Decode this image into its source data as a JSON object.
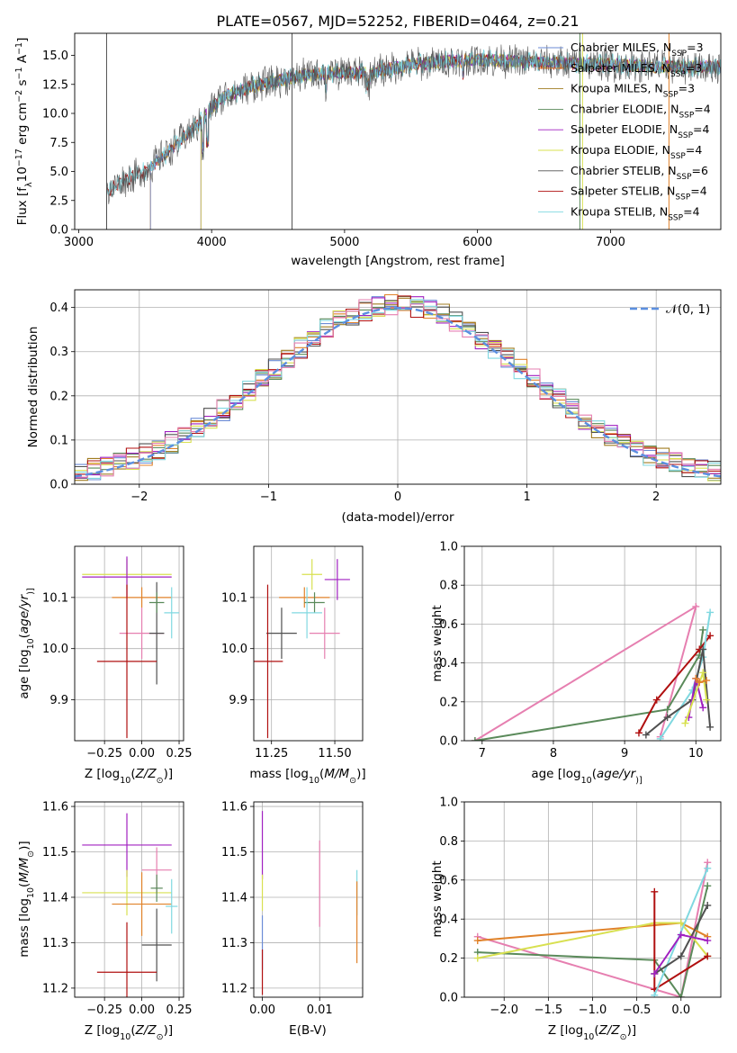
{
  "title": "PLATE=0567, MJD=52252, FIBERID=0464, z=0.21",
  "colors": {
    "Chabrier MILES": "#6b8bd6",
    "Salpeter MILES": "#e0822a",
    "Kroupa MILES": "#a07c20",
    "Chabrier ELODIE": "#5a8a5a",
    "Salpeter ELODIE": "#a020c0",
    "Kroupa ELODIE": "#d8e050",
    "Chabrier STELIB": "#505050",
    "Salpeter STELIB": "#b01010",
    "Kroupa STELIB": "#80d8e0",
    "Pink": "#e67fb0",
    "Normal": "#5b8fe0"
  },
  "chart_data": [
    {
      "type": "line",
      "panel": "spectrum",
      "title": "PLATE=0567, MJD=52252, FIBERID=0464, z=0.21",
      "xlabel": "wavelength [Angstrom, rest frame]",
      "ylabel_parts": [
        "Flux [f",
        "λ",
        "10",
        "−17",
        " erg cm",
        "−2",
        " s",
        "−1",
        " A",
        "−1",
        "]"
      ],
      "xlim": [
        2970,
        7830
      ],
      "ylim": [
        0,
        16.9
      ],
      "xticks": [
        3000,
        4000,
        5000,
        6000,
        7000
      ],
      "yticks": [
        0.0,
        2.5,
        5.0,
        7.5,
        10.0,
        12.5,
        15.0
      ],
      "legend_position": "right",
      "continuum": {
        "x": [
          3210,
          3300,
          3500,
          3650,
          3750,
          3900,
          4000,
          4100,
          4300,
          4500,
          4700,
          4900,
          5200,
          5500,
          5800,
          6000,
          6500,
          7000,
          7400,
          7830
        ],
        "y": [
          3.2,
          4.0,
          5.0,
          6.5,
          7.5,
          9.0,
          10.5,
          11.5,
          12.3,
          12.8,
          13.3,
          13.5,
          13.5,
          14.2,
          14.5,
          14.6,
          14.4,
          14.2,
          14.0,
          14.0
        ]
      },
      "series": [
        {
          "name": "Chabrier MILES",
          "nssp": "3",
          "start": 3540
        },
        {
          "name": "Salpeter MILES",
          "nssp": "3",
          "start": 3540
        },
        {
          "name": "Kroupa MILES",
          "nssp": "3",
          "start": 3540
        },
        {
          "name": "Chabrier ELODIE",
          "nssp": "4",
          "start": 3920
        },
        {
          "name": "Salpeter ELODIE",
          "nssp": "4",
          "start": 3920
        },
        {
          "name": "Kroupa ELODIE",
          "nssp": "4",
          "start": 3920
        },
        {
          "name": "Chabrier STELIB",
          "nssp": "6",
          "start": 3210
        },
        {
          "name": "Salpeter STELIB",
          "nssp": "4",
          "start": 3210
        },
        {
          "name": "Kroupa STELIB",
          "nssp": "4",
          "start": 3210
        }
      ]
    },
    {
      "type": "line",
      "panel": "residual_histogram",
      "xlabel": "(data-model)/error",
      "ylabel": "Normed distribution",
      "xlim": [
        -2.5,
        2.5
      ],
      "ylim": [
        0,
        0.44
      ],
      "xticks": [
        -2,
        -1,
        0,
        1,
        2
      ],
      "yticks": [
        0.0,
        0.1,
        0.2,
        0.3,
        0.4
      ],
      "grid": true,
      "legend_position": "top-right",
      "reference_label": "𝒩(0, 1)",
      "bin_width": 0.1
    },
    {
      "type": "scatter",
      "panel": "Z_vs_age",
      "xlabel_parts": [
        "Z [log",
        "10",
        "(",
        "Z/Z",
        "⊙",
        ")]"
      ],
      "ylabel_parts": [
        "age  [log",
        "10",
        "(",
        "age/yr",
        ")]"
      ],
      "xlim": [
        -0.45,
        0.28
      ],
      "ylim": [
        9.82,
        10.2
      ],
      "xticks": [
        -0.25,
        0.0,
        0.25
      ],
      "yticks": [
        9.9,
        10.0,
        10.1
      ],
      "grid": true,
      "points": [
        {
          "series": "Kroupa ELODIE",
          "x": -0.1,
          "y": 10.145,
          "xerr": 0.3,
          "yerr": 0.03
        },
        {
          "series": "Salpeter ELODIE",
          "x": -0.1,
          "y": 10.14,
          "xerr": 0.3,
          "yerr": 0.04
        },
        {
          "series": "Salpeter MILES",
          "x": 0.0,
          "y": 10.1,
          "xerr": 0.2,
          "yerr": 0.02
        },
        {
          "series": "Pink",
          "x": 0.0,
          "y": 10.03,
          "xerr": 0.15,
          "yerr": 0.05
        },
        {
          "series": "Chabrier STELIB",
          "x": 0.1,
          "y": 10.03,
          "xerr": 0.05,
          "yerr": 0.1
        },
        {
          "series": "Chabrier ELODIE",
          "x": 0.1,
          "y": 10.09,
          "xerr": 0.05,
          "yerr": 0.02
        },
        {
          "series": "Kroupa STELIB",
          "x": 0.2,
          "y": 10.07,
          "xerr": 0.05,
          "yerr": 0.05
        },
        {
          "series": "Salpeter STELIB",
          "x": -0.1,
          "y": 9.975,
          "xerr": 0.2,
          "yerr": 0.15
        }
      ]
    },
    {
      "type": "scatter",
      "panel": "mass_vs_age",
      "xlabel_parts": [
        "mass [log",
        "10",
        "(",
        "M/M",
        "⊙",
        ")]"
      ],
      "xlim": [
        11.18,
        11.61
      ],
      "ylim": [
        9.82,
        10.2
      ],
      "xticks": [
        11.25,
        11.5
      ],
      "yticks": [
        9.9,
        10.0,
        10.1
      ],
      "grid": true,
      "points": [
        {
          "series": "Salpeter ELODIE",
          "x": 11.51,
          "y": 10.135,
          "xerr": 0.05,
          "yerr": 0.04
        },
        {
          "series": "Kroupa ELODIE",
          "x": 11.41,
          "y": 10.145,
          "xerr": 0.04,
          "yerr": 0.03
        },
        {
          "series": "Salpeter MILES",
          "x": 11.38,
          "y": 10.1,
          "xerr": 0.1,
          "yerr": 0.02
        },
        {
          "series": "Chabrier STELIB",
          "x": 11.29,
          "y": 10.03,
          "xerr": 0.06,
          "yerr": 0.05
        },
        {
          "series": "Chabrier ELODIE",
          "x": 11.42,
          "y": 10.09,
          "xerr": 0.04,
          "yerr": 0.02
        },
        {
          "series": "Pink",
          "x": 11.46,
          "y": 10.03,
          "xerr": 0.06,
          "yerr": 0.05
        },
        {
          "series": "Kroupa STELIB",
          "x": 11.39,
          "y": 10.07,
          "xerr": 0.06,
          "yerr": 0.05
        },
        {
          "series": "Salpeter STELIB",
          "x": 11.235,
          "y": 9.975,
          "xerr": 0.06,
          "yerr": 0.15
        }
      ]
    },
    {
      "type": "line",
      "panel": "age_vs_mass_weight",
      "xlabel_parts": [
        "age  [log",
        "10",
        "(",
        "age/yr",
        ")]"
      ],
      "ylabel": "mass weight",
      "xlim": [
        6.75,
        10.35
      ],
      "ylim": [
        0,
        1
      ],
      "xticks": [
        7,
        8,
        9,
        10
      ],
      "yticks": [
        0.0,
        0.2,
        0.4,
        0.6,
        0.8,
        1.0
      ],
      "grid": true,
      "series": [
        {
          "name": "Pink",
          "x": [
            6.9,
            10.0,
            9.5
          ],
          "y": [
            0.0,
            0.69,
            0.02
          ]
        },
        {
          "name": "Chabrier ELODIE",
          "x": [
            6.9,
            9.6,
            10.05,
            10.1
          ],
          "y": [
            0.0,
            0.16,
            0.44,
            0.57
          ]
        },
        {
          "name": "Salpeter STELIB",
          "x": [
            9.2,
            9.45,
            10.05,
            10.2
          ],
          "y": [
            0.04,
            0.21,
            0.47,
            0.54
          ]
        },
        {
          "name": "Kroupa STELIB",
          "x": [
            9.5,
            9.95,
            10.1,
            10.2
          ],
          "y": [
            0.01,
            0.26,
            0.43,
            0.66
          ]
        },
        {
          "name": "Chabrier STELIB",
          "x": [
            9.3,
            9.6,
            9.95,
            10.1,
            10.2
          ],
          "y": [
            0.03,
            0.12,
            0.21,
            0.47,
            0.07
          ]
        },
        {
          "name": "Salpeter ELODIE",
          "x": [
            9.9,
            10.0,
            10.1
          ],
          "y": [
            0.12,
            0.32,
            0.17
          ]
        },
        {
          "name": "Kroupa ELODIE",
          "x": [
            9.85,
            10.1,
            10.15
          ],
          "y": [
            0.09,
            0.35,
            0.21
          ]
        },
        {
          "name": "Salpeter MILES",
          "x": [
            10.0,
            10.05,
            10.15
          ],
          "y": [
            0.32,
            0.3,
            0.31
          ]
        }
      ]
    },
    {
      "type": "scatter",
      "panel": "Z_vs_mass",
      "xlabel_parts": [
        "Z [log",
        "10",
        "(",
        "Z/Z",
        "⊙",
        ")]"
      ],
      "ylabel_parts": [
        "mass [log",
        "10",
        "(",
        "M/M",
        "⊙",
        ")]"
      ],
      "xlim": [
        -0.45,
        0.28
      ],
      "ylim": [
        11.18,
        11.61
      ],
      "xticks": [
        -0.25,
        0.0,
        0.25
      ],
      "yticks": [
        11.2,
        11.3,
        11.4,
        11.5,
        11.6
      ],
      "grid": true,
      "points": [
        {
          "series": "Salpeter ELODIE",
          "x": -0.1,
          "y": 11.515,
          "xerr": 0.3,
          "yerr": 0.07
        },
        {
          "series": "Pink",
          "x": 0.1,
          "y": 11.46,
          "xerr": 0.1,
          "yerr": 0.05
        },
        {
          "series": "Kroupa ELODIE",
          "x": -0.1,
          "y": 11.41,
          "xerr": 0.3,
          "yerr": 0.05
        },
        {
          "series": "Chabrier ELODIE",
          "x": 0.1,
          "y": 11.42,
          "xerr": 0.04,
          "yerr": 0.03
        },
        {
          "series": "Salpeter MILES",
          "x": 0.0,
          "y": 11.385,
          "xerr": 0.2,
          "yerr": 0.07
        },
        {
          "series": "Kroupa STELIB",
          "x": 0.2,
          "y": 11.38,
          "xerr": 0.04,
          "yerr": 0.06
        },
        {
          "series": "Chabrier STELIB",
          "x": 0.1,
          "y": 11.295,
          "xerr": 0.1,
          "yerr": 0.08
        },
        {
          "series": "Salpeter STELIB",
          "x": -0.1,
          "y": 11.235,
          "xerr": 0.2,
          "yerr": 0.11
        }
      ]
    },
    {
      "type": "scatter",
      "panel": "EBV_vs_mass",
      "xlabel": "E(B-V)",
      "xlim": [
        -0.0015,
        0.0175
      ],
      "ylim": [
        11.18,
        11.61
      ],
      "xticks": [
        0.0,
        0.01
      ],
      "yticks": [
        11.2,
        11.3,
        11.4,
        11.5,
        11.6
      ],
      "grid": true,
      "points": [
        {
          "series": "Salpeter ELODIE",
          "x": 0.0,
          "y": 11.515,
          "yerr": 0.075
        },
        {
          "series": "Kroupa ELODIE",
          "x": 0.0,
          "y": 11.41,
          "yerr": 0.04
        },
        {
          "series": "Chabrier MILES",
          "x": 0.0,
          "y": 11.3,
          "yerr": 0.06
        },
        {
          "series": "Salpeter STELIB",
          "x": 0.0,
          "y": 11.235,
          "yerr": 0.05
        },
        {
          "series": "Pink",
          "x": 0.01,
          "y": 11.43,
          "yerr": 0.095
        },
        {
          "series": "Kroupa STELIB",
          "x": 0.0165,
          "y": 11.41,
          "yerr": 0.05
        },
        {
          "series": "Salpeter MILES",
          "x": 0.0165,
          "y": 11.345,
          "yerr": 0.09
        }
      ]
    },
    {
      "type": "line",
      "panel": "Z_vs_mass_weight",
      "xlabel_parts": [
        "Z [log",
        "10",
        "(",
        "Z/Z",
        "⊙",
        ")]"
      ],
      "ylabel": "mass weight",
      "xlim": [
        -2.45,
        0.45
      ],
      "ylim": [
        0,
        1
      ],
      "xticks": [
        -2.0,
        -1.5,
        -1.0,
        -0.5,
        0.0
      ],
      "yticks": [
        0.0,
        0.2,
        0.4,
        0.6,
        0.8,
        1.0
      ],
      "grid": true,
      "series": [
        {
          "name": "Pink",
          "x": [
            -2.3,
            0.0,
            0.3
          ],
          "y": [
            0.31,
            0.0,
            0.69
          ]
        },
        {
          "name": "Chabrier ELODIE",
          "x": [
            -2.3,
            -0.3,
            0.0,
            0.3
          ],
          "y": [
            0.23,
            0.19,
            0.0,
            0.57
          ]
        },
        {
          "name": "Salpeter MILES",
          "x": [
            -2.3,
            0.0,
            0.3
          ],
          "y": [
            0.29,
            0.38,
            0.31
          ]
        },
        {
          "name": "Kroupa ELODIE",
          "x": [
            -2.3,
            -0.3,
            0.0,
            0.3
          ],
          "y": [
            0.2,
            0.38,
            0.38,
            0.21
          ]
        },
        {
          "name": "Salpeter STELIB",
          "x": [
            -0.3,
            -0.3,
            0.3
          ],
          "y": [
            0.54,
            0.04,
            0.21
          ]
        },
        {
          "name": "Kroupa STELIB",
          "x": [
            -0.3,
            0.3
          ],
          "y": [
            0.01,
            0.66
          ]
        },
        {
          "name": "Chabrier STELIB",
          "x": [
            -0.3,
            0.0,
            0.3
          ],
          "y": [
            0.12,
            0.21,
            0.47
          ]
        },
        {
          "name": "Salpeter ELODIE",
          "x": [
            -0.3,
            0.0,
            0.3
          ],
          "y": [
            0.12,
            0.32,
            0.29
          ]
        }
      ]
    }
  ]
}
